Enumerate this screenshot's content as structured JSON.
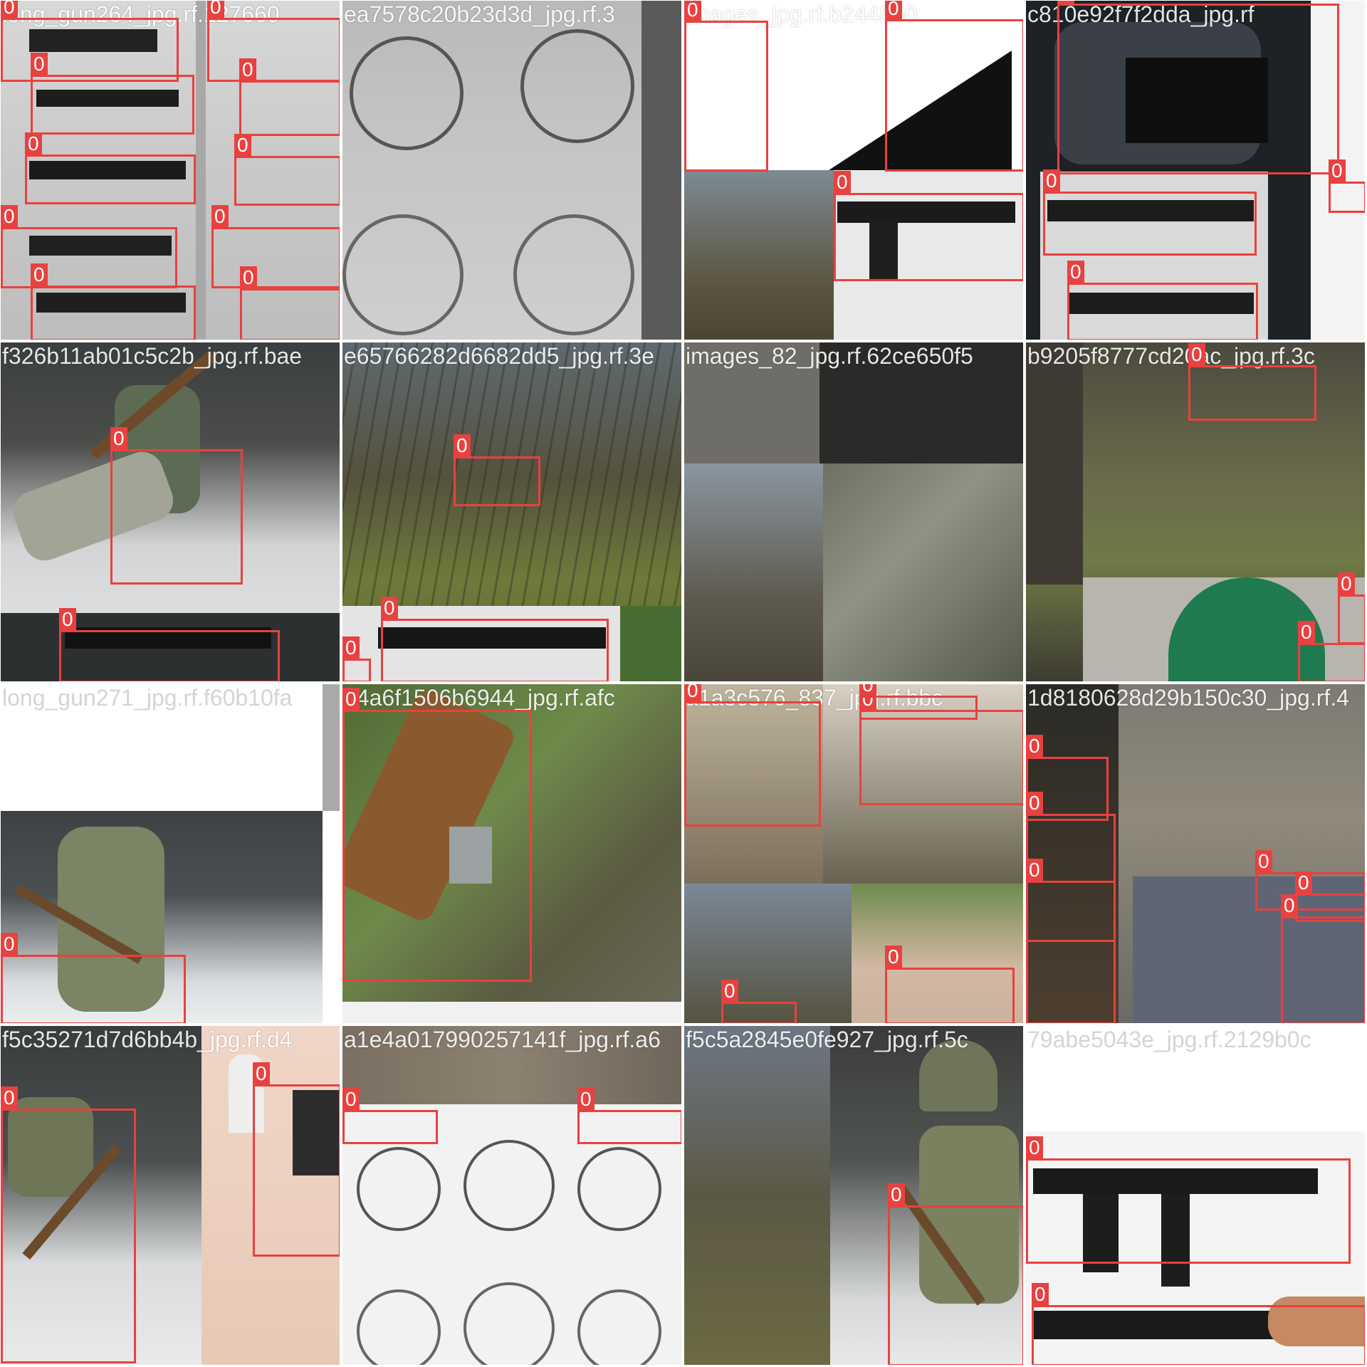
{
  "mosaic": {
    "detection_class_label": "0",
    "box_color": "#e8413f",
    "tiles": [
      {
        "caption": "long_gun264_jpg.rf.127660",
        "scene": "rifles on table"
      },
      {
        "caption": "ea7578c20b23d3d_jpg.rf.3",
        "scene": "vintage bicycle engraving"
      },
      {
        "caption": "images_jpg.rf.b2448b0",
        "scene": "rifle on wall"
      },
      {
        "caption": "c810e92f7f2dda_jpg.rf",
        "scene": "hands holding rifle"
      },
      {
        "caption": "f326b11ab01c5c2b_jpg.rf.bae",
        "scene": "soldier in trench"
      },
      {
        "caption": "e65766282d6682dd5_jpg.rf.3e",
        "scene": "soldier in forest"
      },
      {
        "caption": "images_82_jpg.rf.62ce650f5",
        "scene": "forest mosaic"
      },
      {
        "caption": "b9205f8777cd20ac_jpg.rf.3c",
        "scene": "field and cap"
      },
      {
        "caption": "long_gun271_jpg.rf.f60b10fa",
        "scene": "soldier seated"
      },
      {
        "caption": "74a6f1506b6944_jpg.rf.afc",
        "scene": "shotgun on grass"
      },
      {
        "caption": "a1a3c576_837_jpg.rf.bbc",
        "scene": "scoped rifles"
      },
      {
        "caption": "1d8180628d29b150c30_jpg.rf.4",
        "scene": "shooting range"
      },
      {
        "caption": "f5c35271d7d6bb4b_jpg.rf.d4",
        "scene": "trench and range"
      },
      {
        "caption": "a1e4a017990257141f_jpg.rf.a6",
        "scene": "bicycle engraving"
      },
      {
        "caption": "f5c5a2845e0fe927_jpg.rf.5c",
        "scene": "forest and soldier"
      },
      {
        "caption": "79abe5043e_jpg.rf.2129b0c",
        "scene": "rifle on wall"
      }
    ]
  }
}
